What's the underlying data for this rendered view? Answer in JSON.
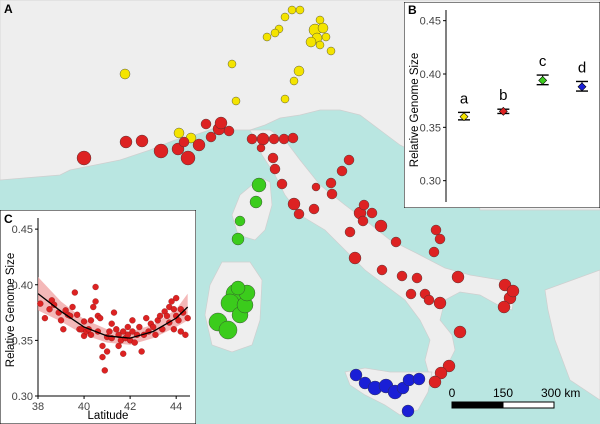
{
  "panel_labels": {
    "a": "A",
    "b": "B",
    "c": "C"
  },
  "colors": {
    "sea": "#b9e6e1",
    "land": "#eeeeee",
    "yellow": "#f4e400",
    "red": "#dd2222",
    "green": "#3bcc1c",
    "blue": "#1a1fd6",
    "ribbon": "#f0a0a0"
  },
  "scale_bar": {
    "ticks": [
      "0",
      "150",
      "300 km"
    ]
  },
  "chart_data": [
    {
      "panel": "B",
      "type": "scatter",
      "ylabel": "Relative Genome Size",
      "xlabel": "",
      "ylim": [
        0.28,
        0.46
      ],
      "yticks": [
        "0.30",
        "0.35",
        "0.40",
        "0.45"
      ],
      "grid": false,
      "groups": [
        {
          "letter": "a",
          "color": "#f4e400",
          "mean": 0.36,
          "low": 0.357,
          "high": 0.364
        },
        {
          "letter": "b",
          "color": "#dd2222",
          "mean": 0.365,
          "low": 0.363,
          "high": 0.367
        },
        {
          "letter": "c",
          "color": "#3bcc1c",
          "mean": 0.394,
          "low": 0.39,
          "high": 0.399
        },
        {
          "letter": "d",
          "color": "#1a1fd6",
          "mean": 0.388,
          "low": 0.384,
          "high": 0.393
        }
      ]
    },
    {
      "panel": "C",
      "type": "scatter",
      "xlabel": "Latitude",
      "ylabel": "Relative Genome Size",
      "xlim": [
        38,
        44.6
      ],
      "ylim": [
        0.3,
        0.46
      ],
      "xticks": [
        "38",
        "40",
        "42",
        "44"
      ],
      "yticks": [
        "0.30",
        "0.35",
        "0.40",
        "0.45"
      ],
      "points": [
        [
          38.1,
          0.383
        ],
        [
          38.3,
          0.37
        ],
        [
          38.5,
          0.378
        ],
        [
          38.6,
          0.386
        ],
        [
          38.7,
          0.382
        ],
        [
          38.9,
          0.375
        ],
        [
          39.0,
          0.368
        ],
        [
          39.1,
          0.36
        ],
        [
          39.2,
          0.377
        ],
        [
          39.3,
          0.373
        ],
        [
          39.4,
          0.372
        ],
        [
          39.5,
          0.38
        ],
        [
          39.6,
          0.393
        ],
        [
          39.7,
          0.373
        ],
        [
          39.8,
          0.36
        ],
        [
          39.9,
          0.36
        ],
        [
          40.0,
          0.367
        ],
        [
          40.0,
          0.354
        ],
        [
          40.1,
          0.358
        ],
        [
          40.2,
          0.36
        ],
        [
          40.3,
          0.355
        ],
        [
          40.3,
          0.368
        ],
        [
          40.4,
          0.38
        ],
        [
          40.5,
          0.398
        ],
        [
          40.5,
          0.385
        ],
        [
          40.6,
          0.372
        ],
        [
          40.6,
          0.358
        ],
        [
          40.7,
          0.37
        ],
        [
          40.8,
          0.345
        ],
        [
          40.8,
          0.335
        ],
        [
          40.9,
          0.323
        ],
        [
          41.0,
          0.353
        ],
        [
          41.0,
          0.34
        ],
        [
          41.1,
          0.358
        ],
        [
          41.2,
          0.365
        ],
        [
          41.2,
          0.352
        ],
        [
          41.3,
          0.375
        ],
        [
          41.4,
          0.36
        ],
        [
          41.5,
          0.355
        ],
        [
          41.5,
          0.345
        ],
        [
          41.6,
          0.35
        ],
        [
          41.7,
          0.358
        ],
        [
          41.7,
          0.338
        ],
        [
          41.8,
          0.352
        ],
        [
          41.9,
          0.355
        ],
        [
          41.9,
          0.362
        ],
        [
          42.0,
          0.35
        ],
        [
          42.1,
          0.358
        ],
        [
          42.1,
          0.368
        ],
        [
          42.2,
          0.348
        ],
        [
          42.3,
          0.355
        ],
        [
          42.4,
          0.362
        ],
        [
          42.5,
          0.34
        ],
        [
          42.6,
          0.355
        ],
        [
          42.7,
          0.37
        ],
        [
          42.8,
          0.358
        ],
        [
          42.9,
          0.365
        ],
        [
          43.0,
          0.362
        ],
        [
          43.1,
          0.355
        ],
        [
          43.2,
          0.368
        ],
        [
          43.3,
          0.372
        ],
        [
          43.4,
          0.36
        ],
        [
          43.5,
          0.376
        ],
        [
          43.6,
          0.372
        ],
        [
          43.7,
          0.38
        ],
        [
          43.7,
          0.366
        ],
        [
          43.8,
          0.385
        ],
        [
          43.9,
          0.378
        ],
        [
          43.9,
          0.36
        ],
        [
          44.0,
          0.388
        ],
        [
          44.0,
          0.372
        ],
        [
          44.1,
          0.368
        ],
        [
          44.2,
          0.358
        ],
        [
          44.2,
          0.378
        ],
        [
          44.3,
          0.375
        ],
        [
          44.4,
          0.355
        ],
        [
          44.5,
          0.37
        ]
      ],
      "fit": [
        [
          38,
          0.392
        ],
        [
          39,
          0.376
        ],
        [
          40,
          0.362
        ],
        [
          41,
          0.354
        ],
        [
          42,
          0.352
        ],
        [
          43,
          0.358
        ],
        [
          44,
          0.37
        ],
        [
          44.5,
          0.38
        ]
      ],
      "band": [
        [
          38,
          0.407,
          0.377
        ],
        [
          39,
          0.385,
          0.367
        ],
        [
          40,
          0.369,
          0.355
        ],
        [
          41,
          0.36,
          0.348
        ],
        [
          42,
          0.358,
          0.346
        ],
        [
          43,
          0.364,
          0.352
        ],
        [
          44,
          0.378,
          0.362
        ],
        [
          44.5,
          0.392,
          0.368
        ]
      ]
    }
  ],
  "map_points": {
    "yellow": [
      [
        292,
        10,
        4
      ],
      [
        300,
        10,
        4
      ],
      [
        285,
        17,
        4
      ],
      [
        279,
        29,
        4
      ],
      [
        275,
        33,
        4
      ],
      [
        267,
        37,
        4
      ],
      [
        320,
        20,
        4
      ],
      [
        315,
        30,
        6
      ],
      [
        323,
        28,
        5
      ],
      [
        317,
        38,
        5
      ],
      [
        311,
        42,
        5
      ],
      [
        326,
        37,
        4
      ],
      [
        320,
        45,
        4
      ],
      [
        331,
        51,
        4
      ],
      [
        232,
        64,
        4
      ],
      [
        125,
        74,
        5
      ],
      [
        299,
        71,
        5
      ],
      [
        294,
        81,
        4
      ],
      [
        285,
        99,
        4
      ],
      [
        236,
        101,
        4
      ],
      [
        179,
        133,
        5
      ],
      [
        191,
        138,
        5
      ]
    ],
    "red": [
      [
        84,
        158,
        7
      ],
      [
        126,
        142,
        6
      ],
      [
        142,
        141,
        6
      ],
      [
        161,
        151,
        7
      ],
      [
        188,
        158,
        7
      ],
      [
        178,
        149,
        6
      ],
      [
        199,
        145,
        6
      ],
      [
        211,
        137,
        5
      ],
      [
        219,
        129,
        6
      ],
      [
        229,
        131,
        5
      ],
      [
        221,
        123,
        6
      ],
      [
        206,
        124,
        5
      ],
      [
        184,
        142,
        5
      ],
      [
        252,
        139,
        5
      ],
      [
        263,
        139,
        6
      ],
      [
        274,
        139,
        5
      ],
      [
        284,
        139,
        5
      ],
      [
        293,
        138,
        5
      ],
      [
        261,
        148,
        4
      ],
      [
        273,
        158,
        5
      ],
      [
        275,
        169,
        5
      ],
      [
        282,
        184,
        5
      ],
      [
        294,
        204,
        6
      ],
      [
        299,
        214,
        5
      ],
      [
        314,
        209,
        5
      ],
      [
        316,
        187,
        4
      ],
      [
        331,
        183,
        5
      ],
      [
        332,
        194,
        5
      ],
      [
        342,
        171,
        5
      ],
      [
        349,
        160,
        5
      ],
      [
        360,
        213,
        6
      ],
      [
        364,
        205,
        5
      ],
      [
        372,
        213,
        5
      ],
      [
        381,
        226,
        6
      ],
      [
        363,
        221,
        5
      ],
      [
        350,
        232,
        5
      ],
      [
        355,
        258,
        6
      ],
      [
        396,
        242,
        5
      ],
      [
        436,
        230,
        5
      ],
      [
        440,
        239,
        5
      ],
      [
        434,
        252,
        5
      ],
      [
        417,
        278,
        5
      ],
      [
        382,
        270,
        5
      ],
      [
        402,
        276,
        5
      ],
      [
        411,
        294,
        5
      ],
      [
        425,
        294,
        5
      ],
      [
        440,
        303,
        6
      ],
      [
        429,
        300,
        5
      ],
      [
        458,
        277,
        6
      ],
      [
        505,
        285,
        6
      ],
      [
        510,
        298,
        6
      ],
      [
        513,
        291,
        6
      ],
      [
        504,
        307,
        6
      ],
      [
        460,
        332,
        6
      ],
      [
        449,
        366,
        6
      ],
      [
        441,
        373,
        6
      ],
      [
        435,
        382,
        6
      ]
    ],
    "green": [
      [
        259,
        185,
        7
      ],
      [
        256,
        202,
        6
      ],
      [
        240,
        221,
        5
      ],
      [
        238,
        239,
        6
      ],
      [
        236,
        294,
        10
      ],
      [
        230,
        303,
        9
      ],
      [
        218,
        322,
        9
      ],
      [
        228,
        330,
        9
      ],
      [
        240,
        315,
        8
      ],
      [
        245,
        305,
        8
      ],
      [
        247,
        293,
        8
      ],
      [
        238,
        288,
        7
      ]
    ],
    "blue": [
      [
        356,
        375,
        6
      ],
      [
        365,
        383,
        6
      ],
      [
        375,
        388,
        7
      ],
      [
        386,
        386,
        7
      ],
      [
        395,
        392,
        7
      ],
      [
        403,
        388,
        6
      ],
      [
        409,
        380,
        6
      ],
      [
        419,
        379,
        6
      ],
      [
        408,
        411,
        6
      ]
    ]
  }
}
